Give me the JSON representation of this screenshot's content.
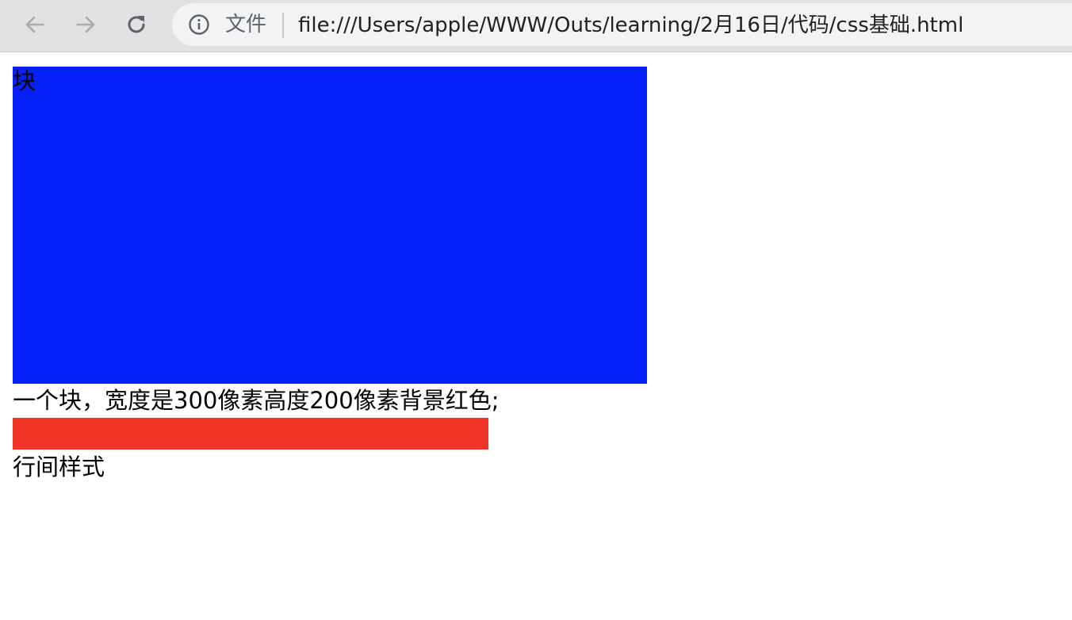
{
  "browser": {
    "scheme_label": "文件",
    "url": "file:///Users/apple/WWW/Outs/learning/2月16日/代码/css基础.html",
    "icons": {
      "back": "arrow-left",
      "forward": "arrow-right",
      "reload": "reload",
      "info": "info-circle"
    }
  },
  "page": {
    "blue_block": {
      "text": "块",
      "color": "#0520f9"
    },
    "description": "一个块，宽度是300像素高度200像素背景红色;",
    "red_block": {
      "color": "#ef3324"
    },
    "caption": "行间样式"
  }
}
